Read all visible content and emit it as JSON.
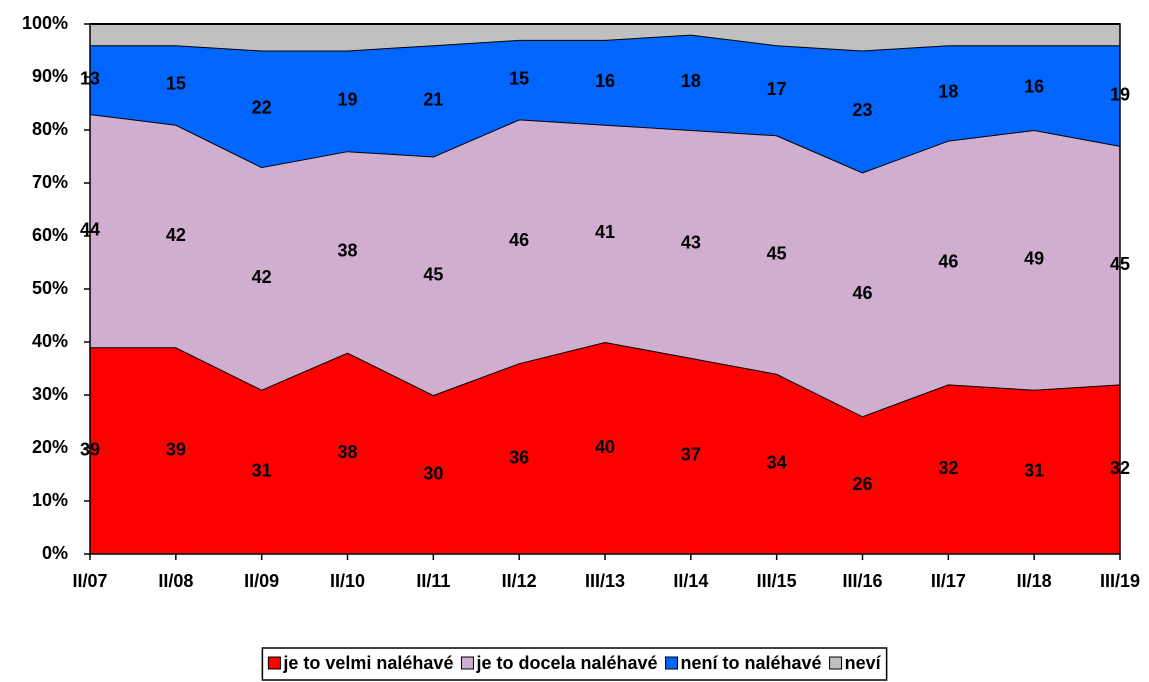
{
  "chart_data": {
    "type": "stacked_area",
    "categories": [
      "II/07",
      "II/08",
      "II/09",
      "II/10",
      "II/11",
      "II/12",
      "III/13",
      "II/14",
      "III/15",
      "III/16",
      "II/17",
      "II/18",
      "III/19"
    ],
    "series": [
      {
        "name": "je to velmi naléhavé",
        "color": "#ff0000",
        "data_labels": true,
        "values": [
          39,
          39,
          31,
          38,
          30,
          36,
          40,
          37,
          34,
          26,
          32,
          31,
          32
        ]
      },
      {
        "name": "je to docela naléhavé",
        "color": "#d0aed0",
        "data_labels": true,
        "values": [
          44,
          42,
          42,
          38,
          45,
          46,
          41,
          43,
          45,
          46,
          46,
          49,
          45
        ]
      },
      {
        "name": "není to naléhavé",
        "color": "#0066ff",
        "data_labels": true,
        "values": [
          13,
          15,
          22,
          19,
          21,
          15,
          16,
          18,
          17,
          23,
          18,
          16,
          19
        ]
      },
      {
        "name": "neví",
        "color": "#c0c0c0",
        "data_labels": false,
        "values": [
          4,
          4,
          5,
          5,
          4,
          3,
          3,
          2,
          4,
          5,
          4,
          4,
          4
        ]
      }
    ],
    "ylim": [
      0,
      100
    ],
    "yticks": [
      {
        "value": 0,
        "label": "0%"
      },
      {
        "value": 10,
        "label": "10%"
      },
      {
        "value": 20,
        "label": "20%"
      },
      {
        "value": 30,
        "label": "30%"
      },
      {
        "value": 40,
        "label": "40%"
      },
      {
        "value": 50,
        "label": "50%"
      },
      {
        "value": 60,
        "label": "60%"
      },
      {
        "value": 70,
        "label": "70%"
      },
      {
        "value": 80,
        "label": "80%"
      },
      {
        "value": 90,
        "label": "90%"
      },
      {
        "value": 100,
        "label": "100%"
      }
    ],
    "legend": "bottom"
  }
}
